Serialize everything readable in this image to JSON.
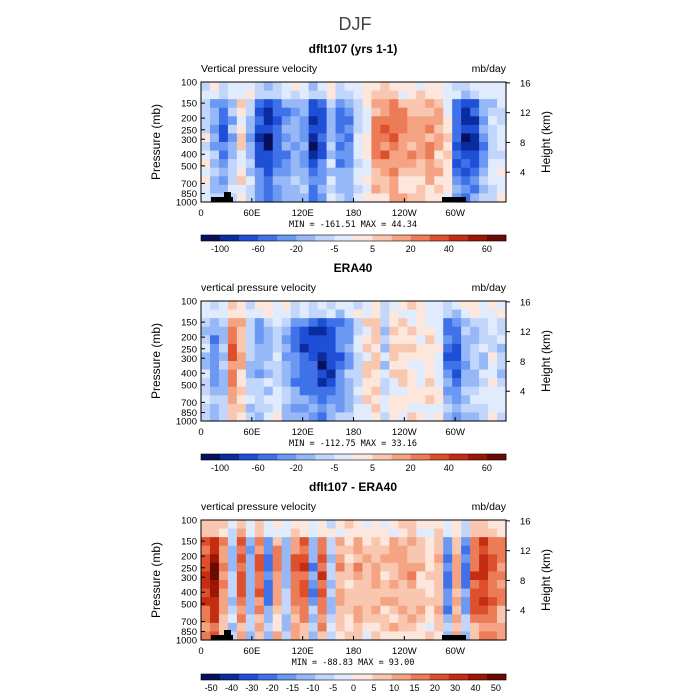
{
  "figure_title": "DJF",
  "chart_data": [
    {
      "type": "heatmap",
      "title": "dflt107 (yrs 1-1)",
      "left_label": "Vertical pressure velocity",
      "units": "mb/day",
      "ylabel_left": "Pressure (mb)",
      "ylabel_right": "Height (km)",
      "pressure_ticks": [
        "100",
        "150",
        "200",
        "250",
        "300",
        "400",
        "500",
        "700",
        "850",
        "1000"
      ],
      "height_ticks": [
        "16",
        "12",
        "8",
        "4"
      ],
      "lon_ticks": [
        "0",
        "60E",
        "120E",
        "180",
        "120W",
        "60W"
      ],
      "stats": "MIN = -161.51   MAX =  44.34",
      "colorbar_labels": [
        "-100",
        "-60",
        "-20",
        "-5",
        "5",
        "20",
        "40",
        "60"
      ],
      "colors": [
        "#08105e",
        "#0a2c9e",
        "#1f4fd6",
        "#3f72e8",
        "#6a98f2",
        "#96b8f7",
        "#c2d6fb",
        "#e0ecfe",
        "#fde6dc",
        "#f9c7b0",
        "#f4a383",
        "#ec7b58",
        "#de4f2c",
        "#c42d12",
        "#9c1606",
        "#6a0b02"
      ],
      "profile": [
        -0.1,
        -0.4,
        -0.6,
        -0.3,
        0.1,
        -0.3,
        -0.8,
        -0.9,
        -0.7,
        -0.5,
        -0.4,
        -0.5,
        -0.9,
        -0.7,
        -0.3,
        -0.6,
        -0.5,
        -0.2,
        0.0,
        0.35,
        0.45,
        0.5,
        0.4,
        0.35,
        0.3,
        0.35,
        0.25,
        0.1,
        -0.7,
        -0.9,
        -0.8,
        -0.5,
        -0.2,
        -0.1
      ],
      "max_value": 44.34,
      "min_value": -161.51
    },
    {
      "type": "heatmap",
      "title": "ERA40",
      "left_label": "vertical pressure velocity",
      "units": "mb/day",
      "ylabel_left": "Pressure (mb)",
      "ylabel_right": "Height (km)",
      "pressure_ticks": [
        "100",
        "150",
        "200",
        "250",
        "300",
        "400",
        "500",
        "700",
        "850",
        "1000"
      ],
      "height_ticks": [
        "16",
        "12",
        "8",
        "4"
      ],
      "lon_ticks": [
        "0",
        "60E",
        "120E",
        "180",
        "120W",
        "60W"
      ],
      "stats": "MIN = -112.75   MAX =  33.16",
      "colorbar_labels": [
        "-100",
        "-60",
        "-20",
        "-5",
        "5",
        "20",
        "40",
        "60"
      ],
      "colors": [
        "#08105e",
        "#0a2c9e",
        "#1f4fd6",
        "#3f72e8",
        "#6a98f2",
        "#96b8f7",
        "#c2d6fb",
        "#e0ecfe",
        "#fde6dc",
        "#f9c7b0",
        "#f4a383",
        "#ec7b58",
        "#de4f2c",
        "#c42d12",
        "#9c1606",
        "#6a0b02"
      ],
      "profile": [
        -0.2,
        -0.5,
        -0.3,
        0.5,
        0.2,
        -0.3,
        -0.4,
        -0.3,
        -0.2,
        -0.4,
        -0.6,
        -0.7,
        -0.8,
        -0.9,
        -0.8,
        -0.6,
        -0.4,
        -0.2,
        0.1,
        0.15,
        -0.2,
        0.1,
        0.1,
        0.1,
        0.0,
        0.1,
        0.0,
        -0.6,
        -0.7,
        -0.4,
        -0.3,
        -0.2,
        -0.1,
        -0.2
      ],
      "max_value": 33.16,
      "min_value": -112.75
    },
    {
      "type": "heatmap",
      "title": "dflt107 - ERA40",
      "left_label": "vertical pressure velocity",
      "units": "mb/day",
      "ylabel_left": "Pressure (mb)",
      "ylabel_right": "Height (km)",
      "pressure_ticks": [
        "100",
        "150",
        "200",
        "250",
        "300",
        "400",
        "500",
        "700",
        "850",
        "1000"
      ],
      "height_ticks": [
        "16",
        "12",
        "8",
        "4"
      ],
      "lon_ticks": [
        "0",
        "60E",
        "120E",
        "180",
        "120W",
        "60W"
      ],
      "stats": "MIN = -88.83   MAX =  93.00",
      "colorbar_labels": [
        "-50",
        "-40",
        "-30",
        "-20",
        "-15",
        "-10",
        "-5",
        "0",
        "5",
        "10",
        "15",
        "20",
        "30",
        "40",
        "50"
      ],
      "colors": [
        "#08105e",
        "#0a2c9e",
        "#1f4fd6",
        "#3f72e8",
        "#6a98f2",
        "#96b8f7",
        "#c2d6fb",
        "#e0ecfe",
        "#fde6dc",
        "#f9c7b0",
        "#f4a383",
        "#ec7b58",
        "#de4f2c",
        "#c42d12",
        "#9c1606",
        "#6a0b02"
      ],
      "profile": [
        0.7,
        0.9,
        0.4,
        -0.3,
        0.6,
        -0.4,
        0.5,
        -0.6,
        0.4,
        -0.3,
        0.5,
        0.6,
        -0.5,
        0.6,
        -0.3,
        0.3,
        0.2,
        0.3,
        0.2,
        0.3,
        0.2,
        0.3,
        0.25,
        0.3,
        0.2,
        0.1,
        0.3,
        -0.6,
        0.3,
        -0.5,
        0.6,
        0.7,
        0.6,
        0.5
      ],
      "max_value": 93.0,
      "min_value": -88.83
    }
  ]
}
